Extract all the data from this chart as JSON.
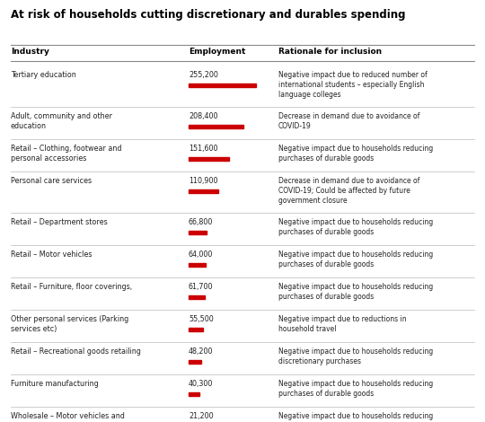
{
  "title": "At risk of households cutting discretionary and durables spending",
  "columns": [
    "Industry",
    "Employment",
    "Rationale for inclusion"
  ],
  "rows": [
    {
      "industry": "Tertiary education",
      "employment": 255200,
      "employment_str": "255,200",
      "rationale": "Negative impact due to reduced number of\ninternational students – especially English\nlanguage colleges",
      "row_lines": 3
    },
    {
      "industry": "Adult, community and other\neducation",
      "employment": 208400,
      "employment_str": "208,400",
      "rationale": "Decrease in demand due to avoidance of\nCOVID-19",
      "row_lines": 2
    },
    {
      "industry": "Retail – Clothing, footwear and\npersonal accessories",
      "employment": 151600,
      "employment_str": "151,600",
      "rationale": "Negative impact due to households reducing\npurchases of durable goods",
      "row_lines": 2
    },
    {
      "industry": "Personal care services",
      "employment": 110900,
      "employment_str": "110,900",
      "rationale": "Decrease in demand due to avoidance of\nCOVID-19; Could be affected by future\ngovernment closure",
      "row_lines": 3
    },
    {
      "industry": "Retail – Department stores",
      "employment": 66800,
      "employment_str": "66,800",
      "rationale": "Negative impact due to households reducing\npurchases of durable goods",
      "row_lines": 2
    },
    {
      "industry": "Retail – Motor vehicles",
      "employment": 64000,
      "employment_str": "64,000",
      "rationale": "Negative impact due to households reducing\npurchases of durable goods",
      "row_lines": 2
    },
    {
      "industry": "Retail – Furniture, floor coverings,",
      "employment": 61700,
      "employment_str": "61,700",
      "rationale": "Negative impact due to households reducing\npurchases of durable goods",
      "row_lines": 2
    },
    {
      "industry": "Other personal services (Parking\nservices etc)",
      "employment": 55500,
      "employment_str": "55,500",
      "rationale": "Negative impact due to reductions in\nhousehold travel",
      "row_lines": 2
    },
    {
      "industry": "Retail – Recreational goods retailing",
      "employment": 48200,
      "employment_str": "48,200",
      "rationale": "Negative impact due to households reducing\ndiscretionary purchases",
      "row_lines": 2
    },
    {
      "industry": "Furniture manufacturing",
      "employment": 40300,
      "employment_str": "40,300",
      "rationale": "Negative impact due to households reducing\npurchases of durable goods",
      "row_lines": 2
    },
    {
      "industry": "Wholesale – Motor vehicles and\nmotor vehicle parts",
      "employment": 21200,
      "employment_str": "21,200",
      "rationale": "Negative impact due to households reducing\npurchases of durable goods",
      "row_lines": 2
    }
  ],
  "max_employment": 255200,
  "bar_color": "#cc0000",
  "header_color": "#000000",
  "bg_color": "#ffffff",
  "text_color": "#222222",
  "line_color": "#bbbbbb",
  "header_line_color": "#888888",
  "fig_width": 5.4,
  "fig_height": 4.7,
  "dpi": 100
}
